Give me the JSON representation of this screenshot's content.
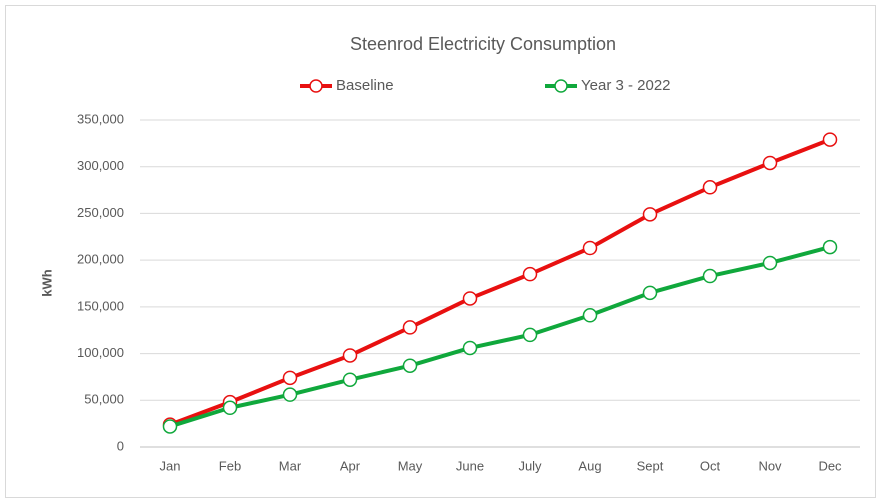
{
  "chart_data": {
    "type": "line",
    "title": "Steenrod Electricity Consumption",
    "y_label": "kWh",
    "categories": [
      "Jan",
      "Feb",
      "Mar",
      "Apr",
      "May",
      "June",
      "July",
      "Aug",
      "Sept",
      "Oct",
      "Nov",
      "Dec"
    ],
    "series": [
      {
        "name": "Baseline",
        "color": "#e81010",
        "values": [
          24000,
          48000,
          74000,
          98000,
          128000,
          159000,
          185000,
          213000,
          249000,
          278000,
          304000,
          329000
        ]
      },
      {
        "name": "Year 3 - 2022",
        "color": "#10a83c",
        "values": [
          22000,
          42000,
          56000,
          72000,
          87000,
          106000,
          120000,
          141000,
          165000,
          183000,
          197000,
          214000
        ]
      }
    ],
    "ylim": [
      0,
      350000
    ],
    "yticks": [
      0,
      {
        "value": 50000,
        "label": "50,000"
      },
      {
        "value": 100000,
        "label": "100,000"
      },
      {
        "value": 150000,
        "label": "150,000"
      },
      {
        "value": 200000,
        "label": "200,000"
      },
      {
        "value": 250000,
        "label": "250,000"
      },
      {
        "value": 300000,
        "label": "300,000"
      },
      {
        "value": 350000,
        "label": "350,000"
      }
    ],
    "grid": true,
    "legend": "top"
  }
}
